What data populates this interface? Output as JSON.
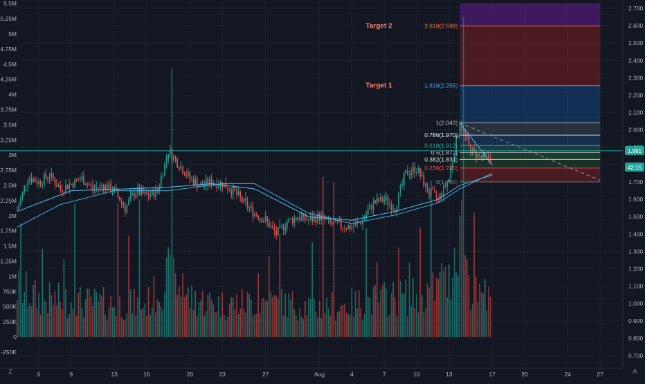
{
  "colors": {
    "background": "#131722",
    "grid": "#1e222d",
    "up": "#26a69a",
    "down": "#ef5350",
    "up_volume": "#1f7a70",
    "down_volume": "#a83b3b",
    "ma": "#4fc3f7",
    "axis_text": "#b2b5be"
  },
  "chart_data": {
    "type": "candlestick",
    "title": "",
    "xlabel": "",
    "ylabel": "",
    "price_axis": {
      "side": "right",
      "range": [
        0.65,
        2.73
      ],
      "ticks": [
        "2.700",
        "2.600",
        "2.500",
        "2.400",
        "2.300",
        "2.200",
        "2.100",
        "2.000",
        "1.900",
        "1.800",
        "1.700",
        "1.600",
        "1.500",
        "1.400",
        "1.300",
        "1.200",
        "1.100",
        "1.000",
        "0.900",
        "0.800",
        "0.700"
      ]
    },
    "volume_axis": {
      "side": "left",
      "range": [
        -400000,
        5600000
      ],
      "ticks": [
        "5.5M",
        "5.25M",
        "5M",
        "4.75M",
        "4.5M",
        "4.25M",
        "4M",
        "3.75M",
        "3.5M",
        "3.25M",
        "3M",
        "2.75M",
        "2.5M",
        "2.25M",
        "2M",
        "1.75M",
        "1.5M",
        "1.25M",
        "1M",
        "750K",
        "500K",
        "250K",
        "0",
        "-250K"
      ]
    },
    "time_axis": {
      "dates": [
        "2020-07-06",
        "2020-07-09",
        "2020-07-13",
        "2020-07-16",
        "2020-07-20",
        "2020-07-23",
        "2020-07-27",
        "2020-08-01",
        "2020-08-04",
        "2020-08-07",
        "2020-08-10",
        "2020-08-13",
        "2020-08-17",
        "2020-08-20",
        "2020-08-24",
        "2020-08-27"
      ],
      "labels": [
        "6",
        "9",
        "13",
        "16",
        "20",
        "23",
        "27",
        "Aug",
        "4",
        "7",
        "10",
        "13",
        "17",
        "20",
        "24",
        "27"
      ]
    },
    "candle_range": [
      "2020-07-04",
      "2020-08-16"
    ],
    "price_anchors": [
      {
        "date": "2020-07-04",
        "price": 1.54
      },
      {
        "date": "2020-07-05",
        "price": 1.73
      },
      {
        "date": "2020-07-06",
        "price": 1.7
      },
      {
        "date": "2020-07-07",
        "price": 1.74
      },
      {
        "date": "2020-07-08",
        "price": 1.66
      },
      {
        "date": "2020-07-09",
        "price": 1.69
      },
      {
        "date": "2020-07-10",
        "price": 1.72
      },
      {
        "date": "2020-07-11",
        "price": 1.66
      },
      {
        "date": "2020-07-12",
        "price": 1.68
      },
      {
        "date": "2020-07-13",
        "price": 1.65
      },
      {
        "date": "2020-07-14",
        "price": 1.55
      },
      {
        "date": "2020-07-15",
        "price": 1.65
      },
      {
        "date": "2020-07-16",
        "price": 1.62
      },
      {
        "date": "2020-07-17",
        "price": 1.65
      },
      {
        "date": "2020-07-18",
        "price": 1.88
      },
      {
        "date": "2020-07-19",
        "price": 1.8
      },
      {
        "date": "2020-07-20",
        "price": 1.72
      },
      {
        "date": "2020-07-21",
        "price": 1.68
      },
      {
        "date": "2020-07-22",
        "price": 1.7
      },
      {
        "date": "2020-07-23",
        "price": 1.69
      },
      {
        "date": "2020-07-24",
        "price": 1.65
      },
      {
        "date": "2020-07-25",
        "price": 1.58
      },
      {
        "date": "2020-07-26",
        "price": 1.52
      },
      {
        "date": "2020-07-27",
        "price": 1.48
      },
      {
        "date": "2020-07-28",
        "price": 1.4
      },
      {
        "date": "2020-07-29",
        "price": 1.47
      },
      {
        "date": "2020-07-30",
        "price": 1.5
      },
      {
        "date": "2020-07-31",
        "price": 1.48
      },
      {
        "date": "2020-08-01",
        "price": 1.5
      },
      {
        "date": "2020-08-02",
        "price": 1.46
      },
      {
        "date": "2020-08-03",
        "price": 1.45
      },
      {
        "date": "2020-08-04",
        "price": 1.44
      },
      {
        "date": "2020-08-05",
        "price": 1.48
      },
      {
        "date": "2020-08-06",
        "price": 1.58
      },
      {
        "date": "2020-08-07",
        "price": 1.6
      },
      {
        "date": "2020-08-08",
        "price": 1.55
      },
      {
        "date": "2020-08-09",
        "price": 1.75
      },
      {
        "date": "2020-08-10",
        "price": 1.78
      },
      {
        "date": "2020-08-11",
        "price": 1.65
      },
      {
        "date": "2020-08-12",
        "price": 1.6
      },
      {
        "date": "2020-08-13",
        "price": 1.72
      },
      {
        "date": "2020-08-14",
        "price": 2.04
      },
      {
        "date": "2020-08-15",
        "price": 1.88
      },
      {
        "date": "2020-08-16",
        "price": 1.84
      }
    ],
    "volume_anchors": [
      {
        "date": "2020-07-04",
        "value": 900000
      },
      {
        "date": "2020-07-06",
        "value": 700000
      },
      {
        "date": "2020-07-09",
        "value": 650000
      },
      {
        "date": "2020-07-13",
        "value": 600000
      },
      {
        "date": "2020-07-16",
        "value": 600000
      },
      {
        "date": "2020-07-18",
        "value": 1100000
      },
      {
        "date": "2020-07-20",
        "value": 700000
      },
      {
        "date": "2020-07-23",
        "value": 600000
      },
      {
        "date": "2020-07-27",
        "value": 650000
      },
      {
        "date": "2020-08-01",
        "value": 550000
      },
      {
        "date": "2020-08-04",
        "value": 600000
      },
      {
        "date": "2020-08-07",
        "value": 700000
      },
      {
        "date": "2020-08-10",
        "value": 750000
      },
      {
        "date": "2020-08-13",
        "value": 1000000
      },
      {
        "date": "2020-08-14",
        "value": 2200000
      },
      {
        "date": "2020-08-15",
        "value": 900000
      },
      {
        "date": "2020-08-16",
        "value": 650000
      }
    ],
    "volume_spikes": [
      {
        "date": "2020-07-04",
        "value": 1880000,
        "color": "up"
      },
      {
        "date": "2020-07-06",
        "value": 1450000,
        "color": "up"
      },
      {
        "date": "2020-07-08",
        "value": 1280000,
        "color": "up"
      },
      {
        "date": "2020-07-09",
        "value": 2200000,
        "color": "up"
      },
      {
        "date": "2020-07-13",
        "value": 2220000,
        "color": "down"
      },
      {
        "date": "2020-07-14",
        "value": 1670000,
        "color": "down"
      },
      {
        "date": "2020-07-15",
        "value": 2270000,
        "color": "up"
      },
      {
        "date": "2020-07-18",
        "value": 4420000,
        "color": "up"
      },
      {
        "date": "2020-07-19",
        "value": 1050000,
        "color": "down"
      },
      {
        "date": "2020-07-26",
        "value": 1050000,
        "color": "down"
      },
      {
        "date": "2020-07-27",
        "value": 1330000,
        "color": "down"
      },
      {
        "date": "2020-07-28",
        "value": 1700000,
        "color": "down"
      },
      {
        "date": "2020-07-31",
        "value": 1560000,
        "color": "up"
      },
      {
        "date": "2020-08-01",
        "value": 2640000,
        "color": "down"
      },
      {
        "date": "2020-08-02",
        "value": 2560000,
        "color": "down"
      },
      {
        "date": "2020-08-05",
        "value": 1800000,
        "color": "up"
      },
      {
        "date": "2020-08-06",
        "value": 1230000,
        "color": "down"
      },
      {
        "date": "2020-08-08",
        "value": 1480000,
        "color": "down"
      },
      {
        "date": "2020-08-09",
        "value": 1230000,
        "color": "up"
      },
      {
        "date": "2020-08-10",
        "value": 1810000,
        "color": "down"
      },
      {
        "date": "2020-08-11",
        "value": 2580000,
        "color": "up"
      },
      {
        "date": "2020-08-12",
        "value": 1220000,
        "color": "up"
      },
      {
        "date": "2020-08-14",
        "value": 5280000,
        "color": "up"
      },
      {
        "date": "2020-08-15",
        "value": 2050000,
        "color": "down"
      },
      {
        "date": "2020-08-16",
        "value": 960000,
        "color": "up"
      }
    ],
    "moving_averages": [
      {
        "anchors": [
          {
            "date": "2020-07-04",
            "price": 1.53
          },
          {
            "date": "2020-07-09",
            "price": 1.65
          },
          {
            "date": "2020-07-14",
            "price": 1.66
          },
          {
            "date": "2020-07-18",
            "price": 1.67
          },
          {
            "date": "2020-07-22",
            "price": 1.69
          },
          {
            "date": "2020-07-26",
            "price": 1.66
          },
          {
            "date": "2020-07-31",
            "price": 1.5
          },
          {
            "date": "2020-08-04",
            "price": 1.48
          },
          {
            "date": "2020-08-08",
            "price": 1.53
          },
          {
            "date": "2020-08-12",
            "price": 1.6
          },
          {
            "date": "2020-08-14",
            "price": 1.68
          },
          {
            "date": "2020-08-17",
            "price": 1.74
          }
        ]
      },
      {
        "anchors": [
          {
            "date": "2020-07-04",
            "price": 1.44
          },
          {
            "date": "2020-07-08",
            "price": 1.57
          },
          {
            "date": "2020-07-13",
            "price": 1.65
          },
          {
            "date": "2020-07-18",
            "price": 1.65
          },
          {
            "date": "2020-07-23",
            "price": 1.69
          },
          {
            "date": "2020-07-26",
            "price": 1.69
          },
          {
            "date": "2020-07-31",
            "price": 1.52
          },
          {
            "date": "2020-08-04",
            "price": 1.46
          },
          {
            "date": "2020-08-08",
            "price": 1.51
          },
          {
            "date": "2020-08-12",
            "price": 1.58
          },
          {
            "date": "2020-08-14",
            "price": 1.66
          },
          {
            "date": "2020-08-17",
            "price": 1.75
          }
        ]
      }
    ],
    "trendline": {
      "start": {
        "date": "2020-08-14",
        "price": 2.04
      },
      "end": {
        "date": "2020-08-27",
        "price": 1.71
      }
    },
    "short_trendline": {
      "start": {
        "date": "2020-08-14",
        "price": 2.04
      },
      "end": {
        "date": "2020-08-17",
        "price": 1.8
      }
    },
    "fibonacci": {
      "start_date": "2020-08-14",
      "end_date": "2020-08-27",
      "levels": [
        {
          "ratio": "0",
          "price": 1.7,
          "label": "0(1.700)",
          "color": "#787b86"
        },
        {
          "ratio": "0.236",
          "price": 1.78,
          "label": "0.236(1.780)",
          "color": "#ef5350"
        },
        {
          "ratio": "0.382",
          "price": 1.83,
          "label": "0.382(1.833)",
          "color": "#c8e6c9"
        },
        {
          "ratio": "0.5",
          "price": 1.87,
          "label": "0.5(1.872)",
          "color": "#b2b5be"
        },
        {
          "ratio": "0.618",
          "price": 1.91,
          "label": "0.618(1.912)",
          "color": "#26a69a"
        },
        {
          "ratio": "0.786",
          "price": 1.97,
          "label": "0.786(1.970)",
          "color": "#e1f5fe"
        },
        {
          "ratio": "1",
          "price": 2.04,
          "label": "1(2.043)",
          "color": "#b2b5be"
        },
        {
          "ratio": "1.618",
          "price": 2.255,
          "label": "1.618(2.255)",
          "color": "#42a5f5"
        },
        {
          "ratio": "2.618",
          "price": 2.598,
          "label": "2.618(2.598)",
          "color": "#ff7043"
        }
      ],
      "zones": [
        {
          "from": 1.7,
          "to": 1.78,
          "color": "#c62828",
          "opacity": 0.3
        },
        {
          "from": 1.78,
          "to": 1.833,
          "color": "#2e7d32",
          "opacity": 0.25
        },
        {
          "from": 1.833,
          "to": 1.872,
          "color": "#388e3c",
          "opacity": 0.3
        },
        {
          "from": 1.872,
          "to": 1.912,
          "color": "#26a69a",
          "opacity": 0.25
        },
        {
          "from": 1.912,
          "to": 1.97,
          "color": "#1e88e5",
          "opacity": 0.22
        },
        {
          "from": 1.97,
          "to": 2.043,
          "color": "#546e7a",
          "opacity": 0.3
        },
        {
          "from": 2.043,
          "to": 2.255,
          "color": "#1565c0",
          "opacity": 0.32
        },
        {
          "from": 2.255,
          "to": 2.598,
          "color": "#b71c1c",
          "opacity": 0.35
        },
        {
          "from": 2.598,
          "to": 2.73,
          "color": "#6a1b9a",
          "opacity": 0.5
        }
      ]
    },
    "annotations": [
      {
        "text": "Target 2",
        "price": 2.598,
        "date": "2020-08-11"
      },
      {
        "text": "Target 1",
        "price": 2.255,
        "date": "2020-08-11"
      }
    ],
    "horizontal_line": {
      "price": 1.88,
      "label": "1.881",
      "color": "#26a69a"
    },
    "price_labels": [
      {
        "text": "1.881",
        "price": 1.88,
        "color": "#26a69a"
      },
      {
        "text": "42:15",
        "price": 1.84,
        "color": "#26a69a"
      }
    ],
    "grid": true,
    "legend": "none"
  },
  "toolbar": {
    "left_label": "Z",
    "right_label": "A"
  }
}
